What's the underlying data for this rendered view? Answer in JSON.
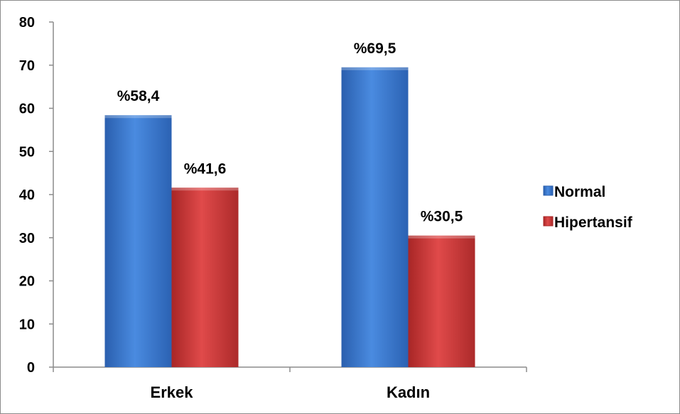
{
  "chart_data": {
    "type": "bar",
    "categories": [
      "Erkek",
      "Kadın"
    ],
    "series": [
      {
        "name": "Normal",
        "values": [
          58.4,
          69.5
        ],
        "labels": [
          "%58,4",
          "%69,5"
        ],
        "color": "#3f7fd6"
      },
      {
        "name": "Hipertansif",
        "values": [
          41.6,
          30.5
        ],
        "labels": [
          "%41,6",
          "%30,5"
        ],
        "color": "#d63a3a"
      }
    ],
    "ylim": [
      0,
      80
    ],
    "yticks": [
      0,
      10,
      20,
      30,
      40,
      50,
      60,
      70,
      80
    ],
    "title": "",
    "xlabel": "",
    "ylabel": "",
    "legend_position": "right",
    "grid": false
  }
}
